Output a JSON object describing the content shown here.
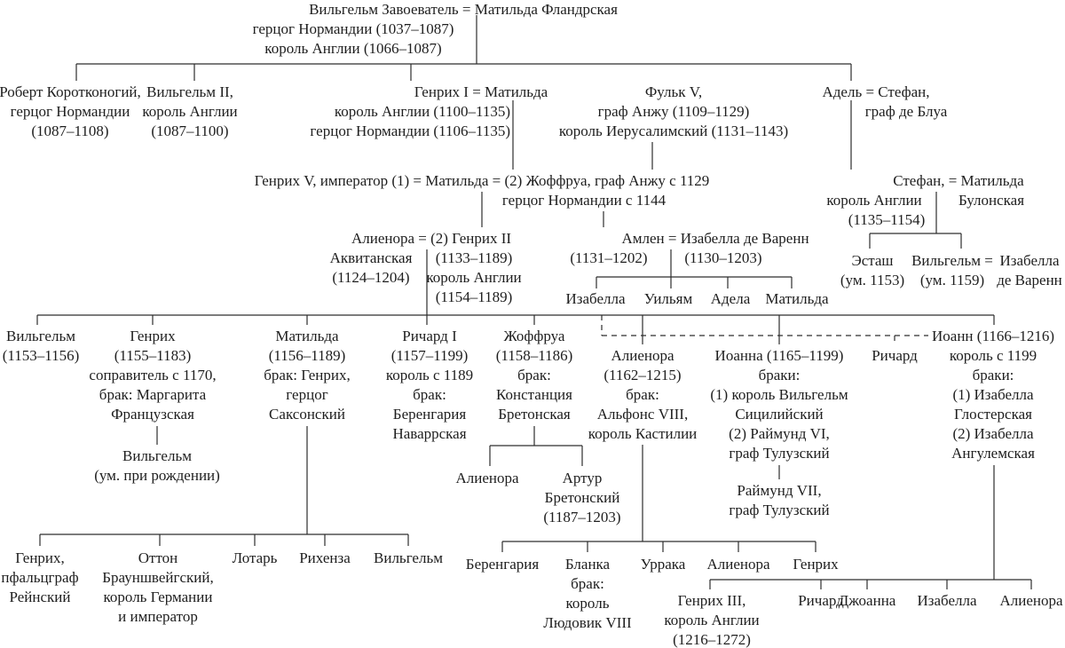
{
  "figure": {
    "type": "genealogical-family-tree",
    "language": "ru",
    "root_person": "Вильгельм Завоеватель"
  },
  "nodes": [
    {
      "id": "william-conqueror-couple",
      "lines": [
        "Вильгельм Завоеватель = Матильда Фландрская"
      ]
    },
    {
      "id": "william-conqueror-titles",
      "lines": [
        "герцог Нормандии (1037–1087)",
        "король Англии (1066–1087)"
      ]
    },
    {
      "id": "robert-curthose",
      "lines": [
        "Роберт Коротконогий,",
        "герцог Нормандии",
        "(1087–1108)"
      ]
    },
    {
      "id": "william-2",
      "lines": [
        "Вильгельм II,",
        "король Англии",
        "(1087–1100)"
      ]
    },
    {
      "id": "henry1-matilda",
      "lines": [
        "Генрих I = Матильда"
      ]
    },
    {
      "id": "henry1-titles",
      "lines": [
        "король Англии (1100–1135)",
        "герцог Нормандии (1106–1135)"
      ]
    },
    {
      "id": "fulk-5",
      "lines": [
        "Фульк V,",
        "граф Анжу (1109–1129)",
        "король Иерусалимский (1131–1143)"
      ]
    },
    {
      "id": "adele-stefan",
      "lines": [
        "Адель = Стефан,"
      ]
    },
    {
      "id": "adele-stefan-title",
      "lines": [
        "граф де Блуа"
      ]
    },
    {
      "id": "henry5-matilda-geoffrey",
      "lines": [
        "Генрих V, император (1) = Матильда = (2) Жоффруа, граф Анжу с 1129"
      ]
    },
    {
      "id": "geoffrey-normandy-title",
      "lines": [
        "герцог Нормандии с 1144"
      ]
    },
    {
      "id": "stefan-matilda-couple",
      "lines": [
        "Стефан, = Матильда"
      ]
    },
    {
      "id": "stefan-title",
      "lines": [
        "король Англии"
      ]
    },
    {
      "id": "matilda-boulogne-title",
      "lines": [
        "Булонская"
      ]
    },
    {
      "id": "stefan-dates",
      "lines": [
        "(1135–1154)"
      ]
    },
    {
      "id": "eustace",
      "lines": [
        "Эсташ",
        "(ум. 1153)"
      ]
    },
    {
      "id": "william-blois",
      "lines": [
        "Вильгельм =",
        "(ум. 1159)"
      ]
    },
    {
      "id": "isabella-warenne-wife",
      "lines": [
        "Изабелла",
        "де Варенн"
      ]
    },
    {
      "id": "eleanor-henry2-couple",
      "lines": [
        "Алиенора = (2) Генрих II"
      ]
    },
    {
      "id": "eleanor-aquitaine-sub",
      "lines": [
        "Аквитанская",
        "(1124–1204)"
      ]
    },
    {
      "id": "henry2-sub",
      "lines": [
        "(1133–1189)",
        "король Англии",
        "(1154–1189)"
      ]
    },
    {
      "id": "hamelin-isabella-couple",
      "lines": [
        "Амлен  =  Изабелла де Варенн"
      ]
    },
    {
      "id": "hamelin-dates",
      "lines": [
        "(1131–1202)"
      ]
    },
    {
      "id": "isabella-warenne-dates",
      "lines": [
        "(1130–1203)"
      ]
    },
    {
      "id": "isabella-hamelin-child",
      "lines": [
        "Изабелла"
      ]
    },
    {
      "id": "william-hamelin-child",
      "lines": [
        "Уильям"
      ]
    },
    {
      "id": "adela-hamelin-child",
      "lines": [
        "Адела"
      ]
    },
    {
      "id": "matilda-hamelin-child",
      "lines": [
        "Матильда"
      ]
    },
    {
      "id": "william-1153",
      "lines": [
        "Вильгельм",
        "(1153–1156)"
      ]
    },
    {
      "id": "henry-young-king",
      "lines": [
        "Генрих",
        "(1155–1183)",
        "соправитель с 1170,",
        "брак: Маргарита",
        "Французская"
      ]
    },
    {
      "id": "william-stillborn",
      "lines": [
        "Вильгельм",
        "(ум. при рождении)"
      ]
    },
    {
      "id": "matilda-1156",
      "lines": [
        "Матильда",
        "(1156–1189)",
        "брак: Генрих,",
        "герцог",
        "Саксонский"
      ]
    },
    {
      "id": "richard-1",
      "lines": [
        "Ричард I",
        "(1157–1199)",
        "король с 1189",
        "брак:",
        "Беренгария",
        "Наваррская"
      ]
    },
    {
      "id": "geoffrey-1158",
      "lines": [
        "Жоффруа",
        "(1158–1186)",
        "брак:",
        "Констанция",
        "Бретонская"
      ]
    },
    {
      "id": "eleanor-brittany",
      "lines": [
        "Алиенора"
      ]
    },
    {
      "id": "arthur-brittany",
      "lines": [
        "Артур",
        "Бретонский",
        "(1187–1203)"
      ]
    },
    {
      "id": "eleanor-1162",
      "lines": [
        "Алиенора",
        "(1162–1215)",
        "брак:",
        "Альфонс VIII,",
        "король Кастилии"
      ]
    },
    {
      "id": "joan-1165",
      "lines": [
        "Иоанна (1165–1199)",
        "браки:",
        "(1) король Вильгельм",
        "Сицилийский",
        "(2) Раймунд VI,",
        "граф Тулузский"
      ]
    },
    {
      "id": "raymond-7",
      "lines": [
        "Раймунд VII,",
        "граф Тулузский"
      ]
    },
    {
      "id": "richard-dashed",
      "lines": [
        "Ричард"
      ]
    },
    {
      "id": "john-1166",
      "lines": [
        "Иоанн (1166–1216)",
        "король с 1199",
        "браки:",
        "(1) Изабелла",
        "Глостерская",
        "(2) Изабелла",
        "Ангулемская"
      ]
    },
    {
      "id": "henry-palatine",
      "lines": [
        "Генрих,",
        "пфальцграф",
        "Рейнский"
      ]
    },
    {
      "id": "otto-brunswick",
      "lines": [
        "Оттон",
        "Брауншвейгский,",
        "король Германии",
        "и император"
      ]
    },
    {
      "id": "lothar",
      "lines": [
        "Лотарь"
      ]
    },
    {
      "id": "richenza",
      "lines": [
        "Рихенза"
      ]
    },
    {
      "id": "william-saxony",
      "lines": [
        "Вильгельм"
      ]
    },
    {
      "id": "berengaria-castile",
      "lines": [
        "Беренгария"
      ]
    },
    {
      "id": "blanca",
      "lines": [
        "Бланка",
        "брак:",
        "король",
        "Людовик VIII"
      ]
    },
    {
      "id": "urraca",
      "lines": [
        "Уррака"
      ]
    },
    {
      "id": "eleanor-castile",
      "lines": [
        "Алиенора"
      ]
    },
    {
      "id": "henry-castile",
      "lines": [
        "Генрих"
      ]
    },
    {
      "id": "henry-3",
      "lines": [
        "Генрих III,",
        "король Англии",
        "(1216–1272)"
      ]
    },
    {
      "id": "richard-cornwall",
      "lines": [
        "Ричард"
      ]
    },
    {
      "id": "joanna-england",
      "lines": [
        "Джоанна"
      ]
    },
    {
      "id": "isabella-england",
      "lines": [
        "Изабелла"
      ]
    },
    {
      "id": "eleanor-england",
      "lines": [
        "Алиенора"
      ]
    }
  ]
}
